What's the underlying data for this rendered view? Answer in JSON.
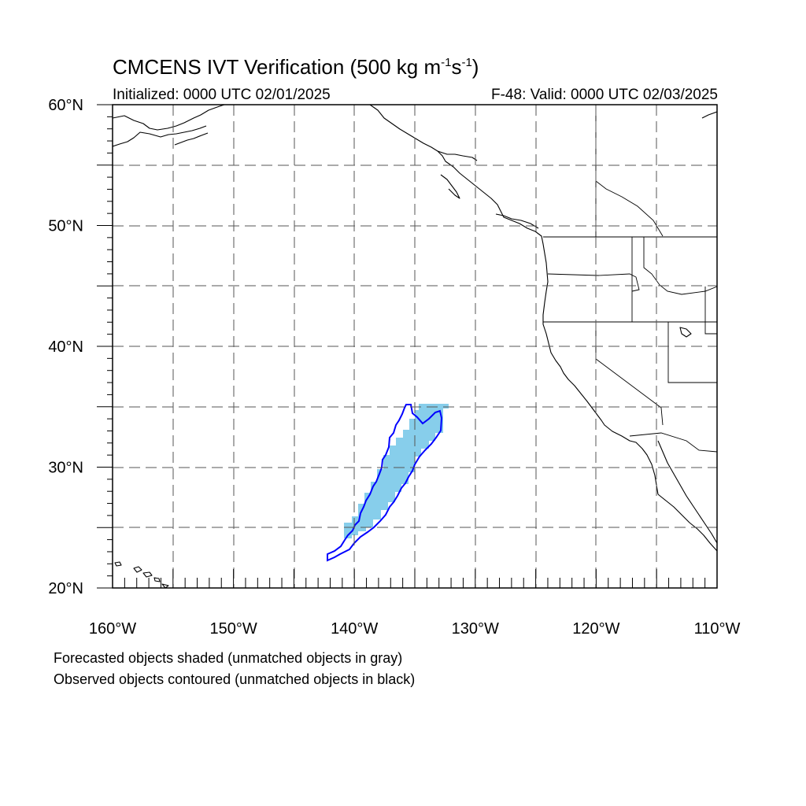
{
  "title": {
    "main": "CMCENS IVT Verification (500 kg m",
    "sup1": "-1",
    "mid": "s",
    "sup2": "-1",
    "end": ")"
  },
  "init_text": "Initialized: 0000 UTC 02/01/2025",
  "valid_text": "F-48: Valid: 0000 UTC 02/03/2025",
  "map": {
    "lon_range": [
      -160,
      -110
    ],
    "lat_range": [
      20,
      60
    ],
    "lat_labels": [
      {
        "lat": 60,
        "text": "60°N"
      },
      {
        "lat": 50,
        "text": "50°N"
      },
      {
        "lat": 40,
        "text": "40°N"
      },
      {
        "lat": 30,
        "text": "30°N"
      },
      {
        "lat": 20,
        "text": "20°N"
      }
    ],
    "lon_labels": [
      {
        "lon": -160,
        "text": "160°W"
      },
      {
        "lon": -150,
        "text": "150°W"
      },
      {
        "lon": -140,
        "text": "140°W"
      },
      {
        "lon": -130,
        "text": "130°W"
      },
      {
        "lon": -120,
        "text": "120°W"
      },
      {
        "lon": -110,
        "text": "110°W"
      }
    ],
    "grid_spacing_deg": 5,
    "forecast_object_color": "#87CEEB",
    "observed_object_color": "#0000FF"
  },
  "legend": {
    "line1": "Forecasted objects shaded (unmatched objects in gray)",
    "line2": "Observed objects contoured (unmatched objects in black)"
  }
}
